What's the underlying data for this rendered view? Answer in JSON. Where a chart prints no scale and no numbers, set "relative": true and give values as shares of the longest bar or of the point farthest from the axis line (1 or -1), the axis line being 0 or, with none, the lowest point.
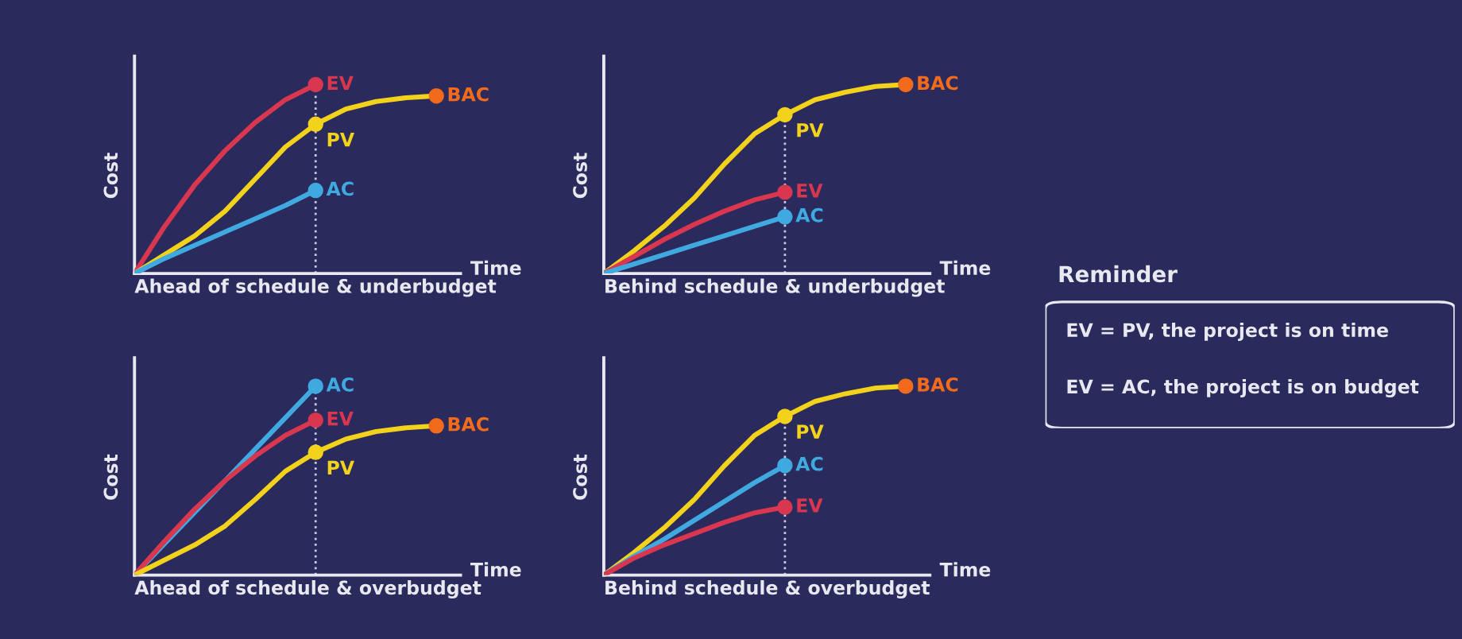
{
  "chart_data": [
    {
      "type": "line",
      "title": "Ahead of schedule & underbudget",
      "xlabel": "Time",
      "ylabel": "Cost",
      "relative": true,
      "annotations": [
        "BAC"
      ],
      "categories": [
        null,
        null,
        null,
        null,
        null,
        null,
        null,
        null,
        null,
        null,
        null
      ],
      "series": [
        {
          "name": "EV",
          "color": "#d9364f",
          "values": [
            0,
            0.25,
            0.47,
            0.65,
            0.8,
            0.92,
            1.0,
            null,
            null,
            null,
            null
          ]
        },
        {
          "name": "PV",
          "color": "#f2d21b",
          "values": [
            0,
            0.1,
            0.2,
            0.33,
            0.5,
            0.67,
            0.79,
            0.87,
            0.91,
            0.93,
            0.94
          ]
        },
        {
          "name": "AC",
          "color": "#3fa9e0",
          "values": [
            0,
            0.08,
            0.15,
            0.22,
            0.29,
            0.36,
            0.44,
            null,
            null,
            null,
            null
          ]
        }
      ]
    },
    {
      "type": "line",
      "title": "Behind schedule & underbudget",
      "xlabel": "Time",
      "ylabel": "Cost",
      "relative": true,
      "annotations": [
        "BAC"
      ],
      "categories": [
        null,
        null,
        null,
        null,
        null,
        null,
        null,
        null,
        null,
        null,
        null
      ],
      "series": [
        {
          "name": "PV",
          "color": "#f2d21b",
          "values": [
            0,
            0.12,
            0.25,
            0.4,
            0.58,
            0.74,
            0.84,
            0.92,
            0.96,
            0.99,
            1.0
          ]
        },
        {
          "name": "EV",
          "color": "#d9364f",
          "values": [
            0,
            0.09,
            0.18,
            0.26,
            0.33,
            0.39,
            0.43,
            null,
            null,
            null,
            null
          ]
        },
        {
          "name": "AC",
          "color": "#3fa9e0",
          "values": [
            0,
            0.05,
            0.1,
            0.15,
            0.2,
            0.25,
            0.3,
            null,
            null,
            null,
            null
          ]
        }
      ]
    },
    {
      "type": "other",
      "title": "Reminder",
      "annotations": [
        "EV = PV, the project is on time",
        "EV = AC, the project is on budget"
      ]
    },
    {
      "type": "line",
      "title": "Ahead of schedule & overbudget",
      "xlabel": "Time",
      "ylabel": "Cost",
      "relative": true,
      "annotations": [
        "BAC"
      ],
      "categories": [
        null,
        null,
        null,
        null,
        null,
        null,
        null,
        null,
        null,
        null,
        null
      ],
      "series": [
        {
          "name": "AC",
          "color": "#3fa9e0",
          "values": [
            0,
            0.167,
            0.333,
            0.5,
            0.667,
            0.833,
            1.0,
            null,
            null,
            null,
            null
          ]
        },
        {
          "name": "EV",
          "color": "#d9364f",
          "values": [
            0,
            0.18,
            0.35,
            0.5,
            0.63,
            0.74,
            0.82,
            null,
            null,
            null,
            null
          ]
        },
        {
          "name": "PV",
          "color": "#f2d21b",
          "values": [
            0,
            0.08,
            0.16,
            0.26,
            0.4,
            0.55,
            0.65,
            0.72,
            0.76,
            0.78,
            0.79
          ]
        }
      ]
    },
    {
      "type": "line",
      "title": "Behind schedule & overbudget",
      "xlabel": "Time",
      "ylabel": "Cost",
      "relative": true,
      "annotations": [
        "BAC"
      ],
      "categories": [
        null,
        null,
        null,
        null,
        null,
        null,
        null,
        null,
        null,
        null,
        null
      ],
      "series": [
        {
          "name": "PV",
          "color": "#f2d21b",
          "values": [
            0,
            0.12,
            0.25,
            0.4,
            0.58,
            0.74,
            0.84,
            0.92,
            0.96,
            0.99,
            1.0
          ]
        },
        {
          "name": "AC",
          "color": "#3fa9e0",
          "values": [
            0,
            0.1,
            0.19,
            0.29,
            0.39,
            0.49,
            0.58,
            null,
            null,
            null,
            null
          ]
        },
        {
          "name": "EV",
          "color": "#d9364f",
          "values": [
            0,
            0.09,
            0.16,
            0.22,
            0.28,
            0.33,
            0.36,
            null,
            null,
            null,
            null
          ]
        }
      ]
    }
  ]
}
